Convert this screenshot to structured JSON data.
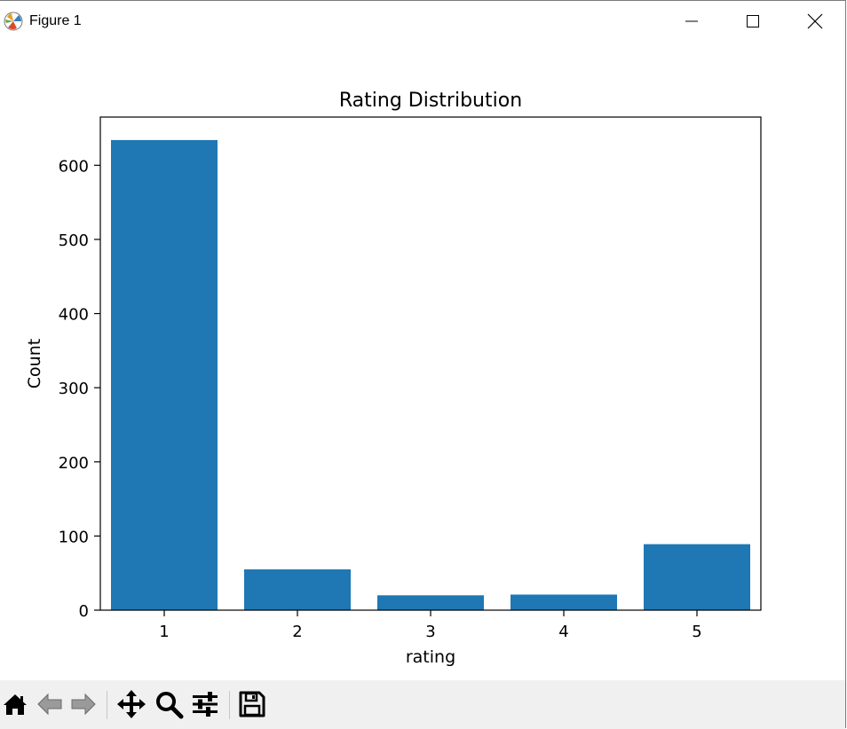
{
  "window": {
    "title": "Figure 1",
    "icon": "matplotlib-logo-icon",
    "controls": [
      "minimize-icon",
      "maximize-icon",
      "close-icon"
    ]
  },
  "toolbar": {
    "buttons": [
      {
        "name": "home-button",
        "icon": "home-icon"
      },
      {
        "name": "back-button",
        "icon": "back-arrow-icon"
      },
      {
        "name": "forward-button",
        "icon": "forward-arrow-icon"
      },
      {
        "name": "pan-button",
        "icon": "move-icon"
      },
      {
        "name": "zoom-button",
        "icon": "magnifier-icon"
      },
      {
        "name": "configure-subplots-button",
        "icon": "sliders-icon"
      },
      {
        "name": "save-button",
        "icon": "floppy-disk-icon"
      }
    ]
  },
  "chart_data": {
    "type": "bar",
    "title": "Rating Distribution",
    "xlabel": "rating",
    "ylabel": "Count",
    "categories": [
      "1",
      "2",
      "3",
      "4",
      "5"
    ],
    "values": [
      634,
      55,
      20,
      21,
      89
    ],
    "ylim": [
      0,
      665
    ],
    "yticks": [
      0,
      100,
      200,
      300,
      400,
      500,
      600
    ],
    "grid": false,
    "bar_color": "#1f77b4"
  }
}
